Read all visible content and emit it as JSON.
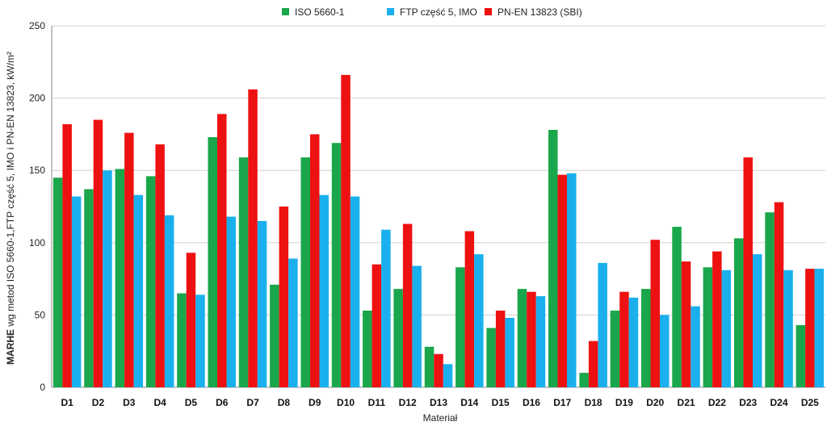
{
  "chart_data": {
    "type": "bar",
    "title": "",
    "xlabel": "Materiał",
    "ylabel_bold": "MARHE",
    "ylabel_rest": " wg metod ISO 5660-1,FTP część 5, IMO i  PN-EN 13823, kW/m²",
    "ylim": [
      0,
      250
    ],
    "yticks": [
      0,
      50,
      100,
      150,
      200,
      250
    ],
    "grid": true,
    "legend_position": "top-center",
    "categories": [
      "D1",
      "D2",
      "D3",
      "D4",
      "D5",
      "D6",
      "D7",
      "D8",
      "D9",
      "D10",
      "D11",
      "D12",
      "D13",
      "D14",
      "D15",
      "D16",
      "D17",
      "D18",
      "D19",
      "D20",
      "D21",
      "D22",
      "D23",
      "D24",
      "D25"
    ],
    "series": [
      {
        "name": "ISO 5660-1",
        "color": "#1aa64a",
        "values": [
          145,
          137,
          151,
          146,
          65,
          173,
          159,
          71,
          159,
          169,
          53,
          68,
          28,
          83,
          41,
          68,
          178,
          10,
          53,
          68,
          111,
          83,
          103,
          121,
          43
        ]
      },
      {
        "name": "PN-EN 13823 (SBI)",
        "color": "#ee1111",
        "values": [
          182,
          185,
          176,
          168,
          93,
          189,
          206,
          125,
          175,
          216,
          85,
          113,
          23,
          108,
          53,
          66,
          147,
          32,
          66,
          102,
          87,
          94,
          159,
          128,
          82
        ]
      },
      {
        "name": "FTP część 5, IMO",
        "color": "#1ab0ee",
        "values": [
          132,
          150,
          133,
          119,
          64,
          118,
          115,
          89,
          133,
          132,
          109,
          84,
          16,
          92,
          48,
          63,
          148,
          86,
          62,
          50,
          56,
          81,
          92,
          81,
          82
        ]
      }
    ],
    "legend_order": [
      0,
      2,
      1
    ]
  }
}
